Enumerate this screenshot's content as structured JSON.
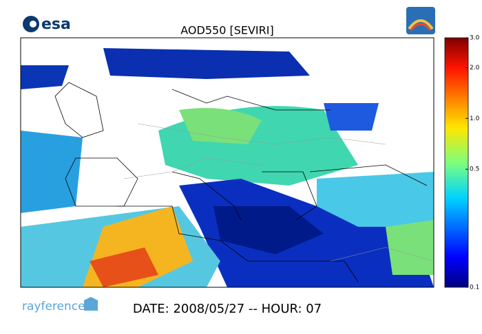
{
  "header": {
    "logo": "esa",
    "title": "AOD550   [SEVIRI]"
  },
  "colorbar": {
    "lim": [
      0.1,
      3.0
    ],
    "scale": "log",
    "ticks": [
      {
        "value": 3.0,
        "label": "3.0"
      },
      {
        "value": 2.0,
        "label": "2.0"
      },
      {
        "value": 1.0,
        "label": "1.0"
      },
      0.5,
      0.1
    ]
  },
  "footer": {
    "brand": "rayference",
    "date": "DATE: 2008/05/27 -- HOUR: 07"
  }
}
